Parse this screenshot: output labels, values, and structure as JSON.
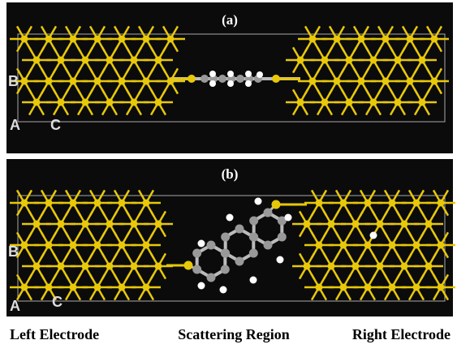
{
  "panels": [
    {
      "label": "(a)",
      "axis_b": "B",
      "axis_a": "A",
      "axis_c": "C"
    },
    {
      "label": "(b)",
      "axis_b": "B",
      "axis_a": "A",
      "axis_c": "C"
    }
  ],
  "footer": {
    "left": "Left Electrode",
    "middle": "Scattering Region",
    "right": "Right Electrode"
  }
}
